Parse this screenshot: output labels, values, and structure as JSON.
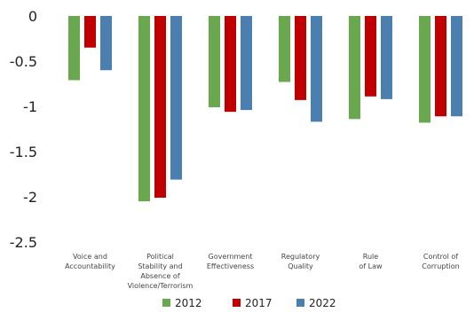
{
  "chart_data": {
    "type": "bar",
    "title": "",
    "xlabel": "",
    "ylabel": "",
    "ylim": [
      -2.5,
      0
    ],
    "yticks": [
      "0",
      "-0.5",
      "-1",
      "-1.5",
      "-2",
      "-2.5"
    ],
    "ytick_values": [
      0,
      -0.5,
      -1,
      -1.5,
      -2,
      -2.5
    ],
    "categories": [
      [
        "Voice and",
        "Accountability"
      ],
      [
        "Political",
        "Stability and",
        "Absence of",
        "Violence/Terrorism"
      ],
      [
        "Government",
        "Effectiveness"
      ],
      [
        "Regulatory",
        "Quality"
      ],
      [
        "Rule",
        "of Law"
      ],
      [
        "Control of",
        "Corruption"
      ]
    ],
    "series": [
      {
        "name": "2012",
        "color": "#6aa84f",
        "values": [
          -0.71,
          -2.05,
          -1.01,
          -0.73,
          -1.14,
          -1.18
        ]
      },
      {
        "name": "2017",
        "color": "#c00000",
        "values": [
          -0.35,
          -2.01,
          -1.06,
          -0.93,
          -0.89,
          -1.11
        ]
      },
      {
        "name": "2022",
        "color": "#4a7fb0",
        "values": [
          -0.6,
          -1.81,
          -1.04,
          -1.17,
          -0.92,
          -1.11
        ]
      }
    ],
    "grid": false,
    "legend_position": "bottom"
  }
}
